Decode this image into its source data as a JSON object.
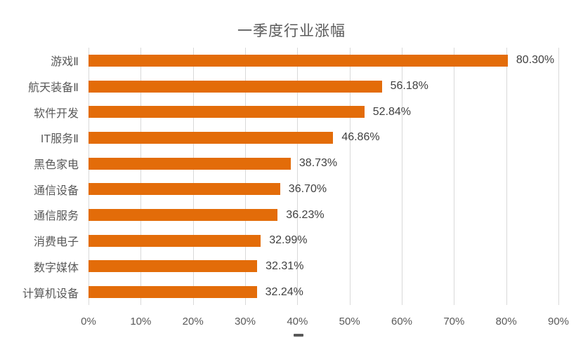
{
  "chart_data": {
    "type": "bar",
    "orientation": "horizontal",
    "title": "一季度行业涨幅",
    "categories": [
      "游戏Ⅱ",
      "航天装备Ⅱ",
      "软件开发",
      "IT服务Ⅱ",
      "黑色家电",
      "通信设备",
      "通信服务",
      "消费电子",
      "数字媒体",
      "计算机设备"
    ],
    "values": [
      80.3,
      56.18,
      52.84,
      46.86,
      38.73,
      36.7,
      36.23,
      32.99,
      32.31,
      32.24
    ],
    "data_labels": [
      "80.30%",
      "56.18%",
      "52.84%",
      "46.86%",
      "38.73%",
      "36.70%",
      "36.23%",
      "32.99%",
      "32.31%",
      "32.24%"
    ],
    "x_ticks": [
      "0%",
      "10%",
      "20%",
      "30%",
      "40%",
      "50%",
      "60%",
      "70%",
      "80%",
      "90%"
    ],
    "xlim": [
      0,
      90
    ],
    "grid": "vertical",
    "legend": "none",
    "colors": {
      "bar": "#E36C09",
      "gridline": "#D9D9D9",
      "title": "#595959",
      "axis_labels": "#595959",
      "data_labels": "#404040",
      "background": "#FFFFFF",
      "clipped_fragment": "#595959"
    }
  }
}
